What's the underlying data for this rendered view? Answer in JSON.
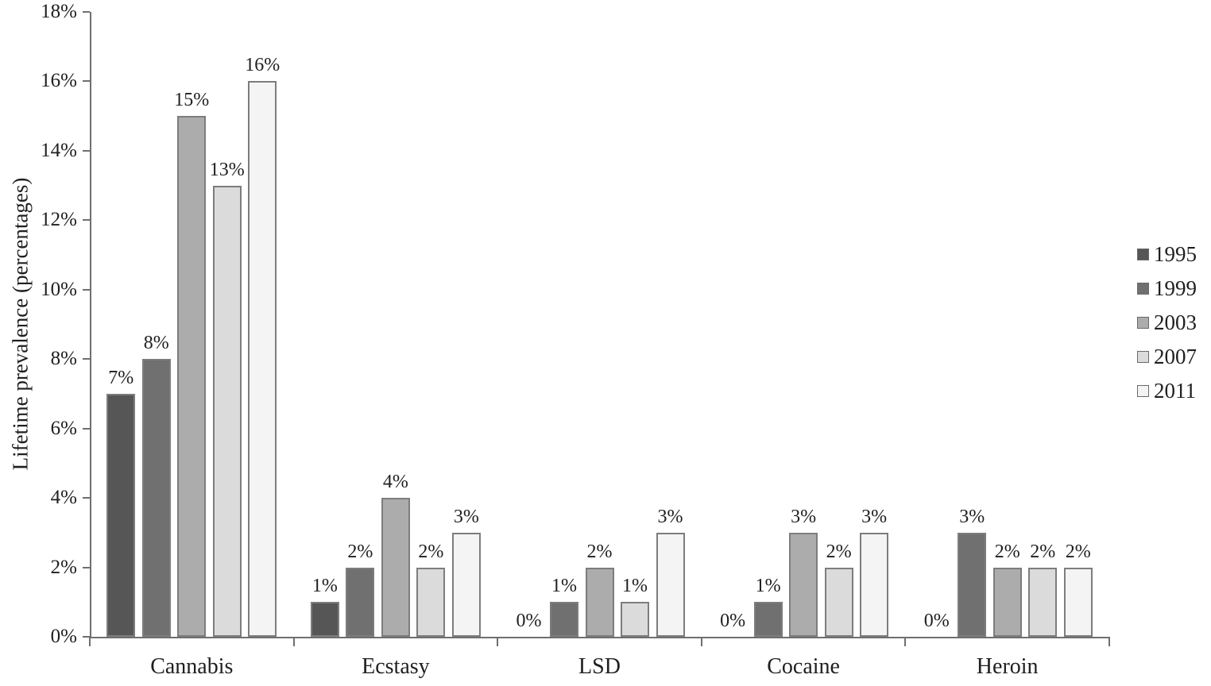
{
  "chart_data": {
    "type": "bar",
    "title": "",
    "xlabel": "",
    "ylabel": "Lifetime prevalence (percentages)",
    "categories": [
      "Cannabis",
      "Ecstasy",
      "LSD",
      "Cocaine",
      "Heroin"
    ],
    "series": [
      {
        "name": "1995",
        "color": "#565656",
        "values": [
          7,
          1,
          0,
          0,
          0
        ]
      },
      {
        "name": "1999",
        "color": "#707070",
        "values": [
          8,
          2,
          1,
          1,
          3
        ]
      },
      {
        "name": "2003",
        "color": "#acacac",
        "values": [
          15,
          4,
          2,
          3,
          2
        ]
      },
      {
        "name": "2007",
        "color": "#dbdbdb",
        "values": [
          13,
          2,
          1,
          2,
          2
        ]
      },
      {
        "name": "2011",
        "color": "#f4f4f4",
        "values": [
          16,
          3,
          3,
          3,
          2
        ]
      }
    ],
    "bar_value_labels": {
      "Cannabis": [
        "7%",
        "8%",
        "15%",
        "13%",
        "16%"
      ],
      "Ecstasy": [
        "1%",
        "2%",
        "4%",
        "2%",
        "3%"
      ],
      "LSD": [
        "0%",
        "1%",
        "2%",
        "1%",
        "3%"
      ],
      "Cocaine": [
        "0%",
        "1%",
        "3%",
        "2%",
        "3%"
      ],
      "Heroin": [
        "0%",
        "3%",
        "2%",
        "2%",
        "2%"
      ]
    },
    "y_ticks": [
      "0%",
      "2%",
      "4%",
      "6%",
      "8%",
      "10%",
      "12%",
      "14%",
      "16%",
      "18%"
    ],
    "ylim": [
      0,
      18
    ],
    "grid": false,
    "legend_position": "right",
    "legend_entries": [
      "1995",
      "1999",
      "2003",
      "2007",
      "2011"
    ]
  },
  "colors": {
    "axis": "#6f6f6f",
    "text": "#1f1f1f",
    "bar_border": "#7d7d7d",
    "background": "#ffffff"
  }
}
